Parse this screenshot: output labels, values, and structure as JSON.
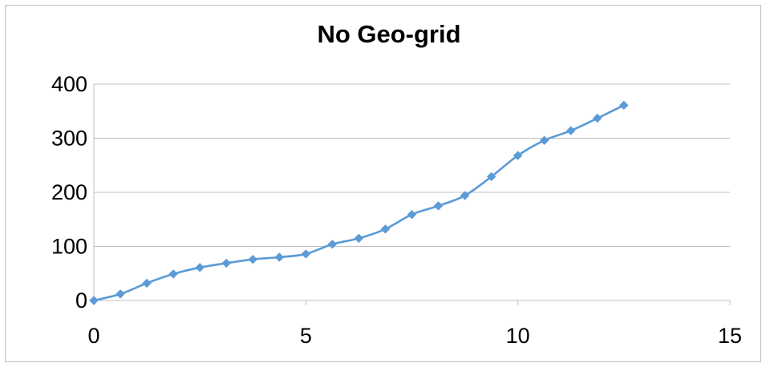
{
  "chart_data": {
    "type": "line",
    "title": "No Geo-grid",
    "xlabel": "",
    "ylabel": "",
    "xlim": [
      0,
      15
    ],
    "ylim": [
      0,
      400
    ],
    "x_ticks": [
      0,
      5,
      10,
      15
    ],
    "y_ticks": [
      0,
      100,
      200,
      300,
      400
    ],
    "grid": "horizontal",
    "legend": "none",
    "series_color": "#5b9bd5",
    "series": [
      {
        "x": [
          0,
          0.625,
          1.25,
          1.875,
          2.5,
          3.125,
          3.75,
          4.375,
          5.0,
          5.625,
          6.25,
          6.875,
          7.5,
          8.125,
          8.75,
          9.375,
          10.0,
          10.625,
          11.25,
          11.875,
          12.5
        ],
        "y": [
          0,
          12,
          32,
          49,
          61,
          69,
          76,
          80,
          86,
          104,
          115,
          132,
          159,
          175,
          194,
          229,
          268,
          296,
          314,
          337,
          361
        ]
      }
    ]
  }
}
